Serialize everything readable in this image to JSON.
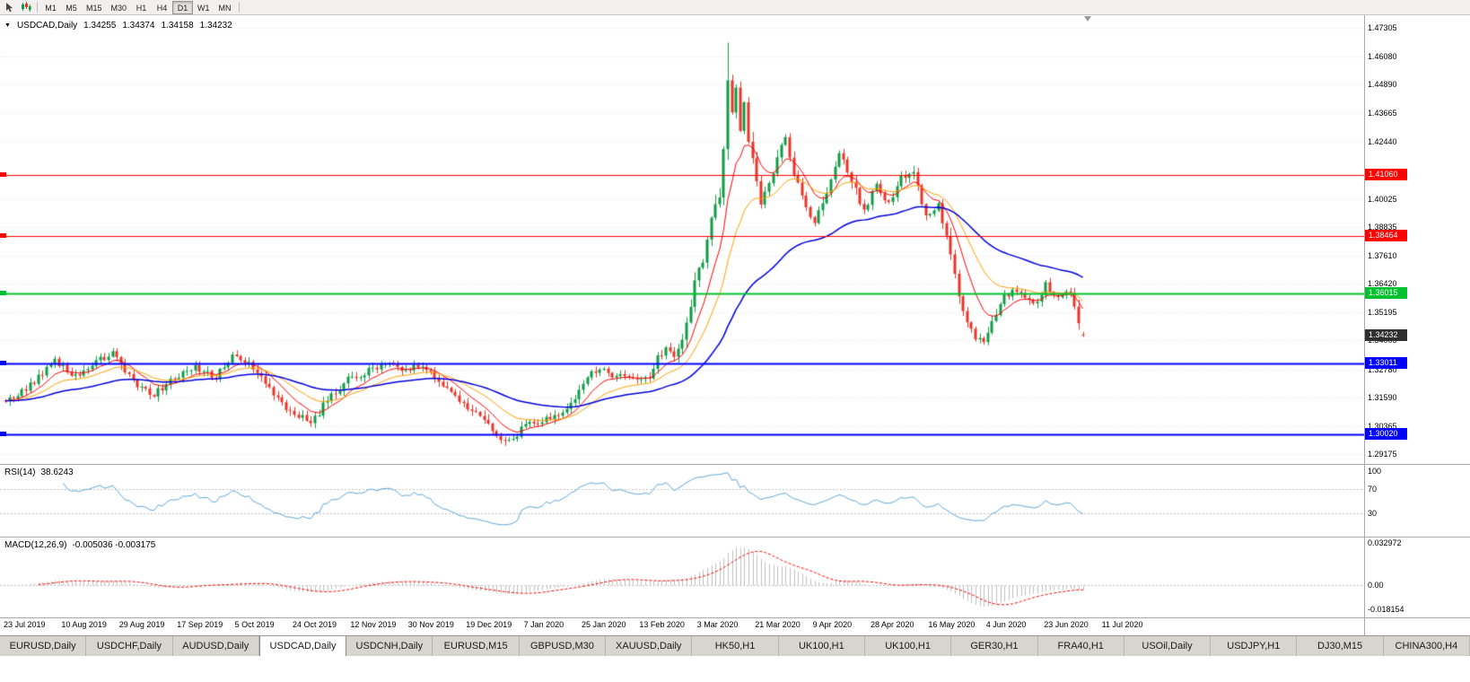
{
  "colors": {
    "background": "#FFFFFF",
    "bull": "#119C46",
    "bear": "#E8352A",
    "ma_fast": "#FF0000",
    "ma_mid": "#FFA000",
    "ma_slow": "#0000E0",
    "hline_red": "#FF0000",
    "hline_green": "#00C22E",
    "hline_blue": "#0000FF",
    "current_price_badge": "#2F2F2F",
    "rsi_line": "#5FA8D8",
    "macd_histogram": "#BFBFBF",
    "macd_signal": "#FF0000",
    "grid": "#E3E3E3",
    "level_dash": "#C0C0C0",
    "axis_text": "#000000"
  },
  "toolbar": {
    "timeframes": [
      "M1",
      "M5",
      "M15",
      "M30",
      "H1",
      "H4",
      "D1",
      "W1",
      "MN"
    ],
    "active_timeframe": "D1"
  },
  "chart": {
    "title": {
      "dropdown_icon": "▼",
      "symbol": "USDCAD,Daily",
      "open": "1.34255",
      "high": "1.34374",
      "low": "1.34158",
      "close": "1.34232"
    },
    "price_axis": {
      "ticks": [
        1.47305,
        1.4608,
        1.4489,
        1.43665,
        1.4244,
        1.40025,
        1.38835,
        1.3761,
        1.3642,
        1.35195,
        1.34005,
        1.3278,
        1.3159,
        1.30365,
        1.29175
      ]
    },
    "hlines": [
      {
        "value": 1.4106,
        "label": "1.41060",
        "color_key": "hline_red",
        "width": 1
      },
      {
        "value": 1.38464,
        "label": "1.38464",
        "color_key": "hline_red",
        "width": 1
      },
      {
        "value": 1.36015,
        "label": "1.36015",
        "color_key": "hline_green",
        "width": 2
      },
      {
        "value": 1.33011,
        "label": "1.33011",
        "color_key": "hline_blue",
        "width": 2
      },
      {
        "value": 1.3002,
        "label": "1.30020",
        "color_key": "hline_blue",
        "width": 2
      }
    ],
    "current_price": {
      "value": 1.34232,
      "label": "1.34232"
    }
  },
  "chart_data": {
    "type": "candlestick",
    "symbol": "USDCAD",
    "timeframe": "Daily",
    "candle_count": 262,
    "price_range": [
      1.28755,
      1.47839
    ],
    "extreme_high": 1.4668,
    "extreme_low": 1.2952,
    "last_candle": {
      "open": 1.34255,
      "high": 1.34374,
      "low": 1.34158,
      "close": 1.34232
    },
    "price_path": [
      [
        0,
        1.3145
      ],
      [
        4,
        1.3185
      ],
      [
        8,
        1.324
      ],
      [
        12,
        1.332
      ],
      [
        15,
        1.327
      ],
      [
        17,
        1.3245
      ],
      [
        20,
        1.329
      ],
      [
        23,
        1.332
      ],
      [
        26,
        1.3345
      ],
      [
        29,
        1.327
      ],
      [
        31,
        1.3225
      ],
      [
        34,
        1.3185
      ],
      [
        36,
        1.317
      ],
      [
        39,
        1.3215
      ],
      [
        41,
        1.3245
      ],
      [
        44,
        1.327
      ],
      [
        46,
        1.3285
      ],
      [
        49,
        1.326
      ],
      [
        51,
        1.3245
      ],
      [
        53,
        1.329
      ],
      [
        55,
        1.333
      ],
      [
        57,
        1.3325
      ],
      [
        59,
        1.331
      ],
      [
        61,
        1.327
      ],
      [
        63,
        1.323
      ],
      [
        65,
        1.318
      ],
      [
        67,
        1.313
      ],
      [
        69,
        1.31
      ],
      [
        71,
        1.308
      ],
      [
        74,
        1.305
      ],
      [
        76,
        1.3095
      ],
      [
        78,
        1.3155
      ],
      [
        81,
        1.32
      ],
      [
        83,
        1.3235
      ],
      [
        86,
        1.3255
      ],
      [
        88,
        1.3275
      ],
      [
        90,
        1.329
      ],
      [
        92,
        1.3305
      ],
      [
        94,
        1.329
      ],
      [
        96,
        1.328
      ],
      [
        98,
        1.3285
      ],
      [
        100,
        1.329
      ],
      [
        102,
        1.327
      ],
      [
        104,
        1.325
      ],
      [
        106,
        1.321
      ],
      [
        108,
        1.317
      ],
      [
        110,
        1.3145
      ],
      [
        112,
        1.312
      ],
      [
        114,
        1.309
      ],
      [
        116,
        1.3055
      ],
      [
        118,
        1.301
      ],
      [
        120,
        1.298
      ],
      [
        122,
        1.2985
      ],
      [
        124,
        1.3005
      ],
      [
        126,
        1.3035
      ],
      [
        128,
        1.3055
      ],
      [
        130,
        1.306
      ],
      [
        132,
        1.307
      ],
      [
        134,
        1.309
      ],
      [
        136,
        1.3115
      ],
      [
        138,
        1.315
      ],
      [
        140,
        1.32
      ],
      [
        142,
        1.3255
      ],
      [
        144,
        1.328
      ],
      [
        146,
        1.326
      ],
      [
        148,
        1.325
      ],
      [
        150,
        1.3242
      ],
      [
        152,
        1.3235
      ],
      [
        154,
        1.3228
      ],
      [
        156,
        1.3255
      ],
      [
        158,
        1.332
      ],
      [
        160,
        1.338
      ],
      [
        162,
        1.333
      ],
      [
        164,
        1.339
      ],
      [
        166,
        1.353
      ],
      [
        167,
        1.366
      ],
      [
        168,
        1.37
      ],
      [
        169,
        1.374
      ],
      [
        170,
        1.384
      ],
      [
        171,
        1.393
      ],
      [
        172,
        1.397
      ],
      [
        173,
        1.401
      ],
      [
        174,
        1.423
      ],
      [
        175,
        1.454
      ],
      [
        176,
        1.436
      ],
      [
        177,
        1.448
      ],
      [
        178,
        1.43
      ],
      [
        179,
        1.443
      ],
      [
        180,
        1.426
      ],
      [
        181,
        1.419
      ],
      [
        182,
        1.407
      ],
      [
        183,
        1.399
      ],
      [
        185,
        1.406
      ],
      [
        187,
        1.418
      ],
      [
        189,
        1.426
      ],
      [
        191,
        1.409
      ],
      [
        193,
        1.402
      ],
      [
        196,
        1.39
      ],
      [
        199,
        1.404
      ],
      [
        202,
        1.42
      ],
      [
        205,
        1.409
      ],
      [
        208,
        1.395
      ],
      [
        211,
        1.407
      ],
      [
        214,
        1.398
      ],
      [
        217,
        1.41
      ],
      [
        220,
        1.411
      ],
      [
        223,
        1.393
      ],
      [
        226,
        1.398
      ],
      [
        229,
        1.378
      ],
      [
        232,
        1.352
      ],
      [
        235,
        1.342
      ],
      [
        237,
        1.34
      ],
      [
        239,
        1.348
      ],
      [
        241,
        1.356
      ],
      [
        243,
        1.36
      ],
      [
        245,
        1.362
      ],
      [
        247,
        1.357
      ],
      [
        249,
        1.3555
      ],
      [
        251,
        1.359
      ],
      [
        252,
        1.364
      ],
      [
        254,
        1.358
      ],
      [
        256,
        1.359
      ],
      [
        258,
        1.362
      ],
      [
        259,
        1.355
      ],
      [
        260,
        1.346
      ],
      [
        261,
        1.34232
      ]
    ],
    "x_labels": [
      "23 Jul 2019",
      "10 Aug 2019",
      "29 Aug 2019",
      "17 Sep 2019",
      "5 Oct 2019",
      "24 Oct 2019",
      "12 Nov 2019",
      "30 Nov 2019",
      "19 Dec 2019",
      "7 Jan 2020",
      "25 Jan 2020",
      "13 Feb 2020",
      "3 Mar 2020",
      "21 Mar 2020",
      "9 Apr 2020",
      "28 Apr 2020",
      "16 May 2020",
      "4 Jun 2020",
      "23 Jun 2020",
      "11 Jul 2020"
    ],
    "moving_averages": [
      {
        "name": "fast",
        "period": 9,
        "color_key": "ma_fast",
        "width": 1
      },
      {
        "name": "mid",
        "period": 20,
        "color_key": "ma_mid",
        "width": 1
      },
      {
        "name": "slow",
        "period": 52,
        "color_key": "ma_slow",
        "width": 1.5
      }
    ],
    "indicators": {
      "rsi": {
        "period": 14,
        "current": "38.6243",
        "levels": [
          70,
          30
        ],
        "axis_ticks": [
          {
            "label": "100",
            "value": 100
          },
          {
            "label": "70",
            "value": 70
          },
          {
            "label": "30",
            "value": 30
          }
        ],
        "range": [
          -8,
          110
        ]
      },
      "macd": {
        "fast": 12,
        "slow": 26,
        "signal": 9,
        "current_macd": "-0.005036",
        "current_signal": "-0.003175",
        "axis_ticks": [
          {
            "label": "0.032972",
            "value": 0.032972
          },
          {
            "label": "0.00",
            "value": 0
          },
          {
            "label": "-0.018154",
            "value": -0.018154
          }
        ],
        "range": [
          -0.0247,
          0.0371
        ]
      }
    }
  },
  "rsi_panel": {
    "label": "RSI(14)",
    "value": "38.6243"
  },
  "macd_panel": {
    "label": "MACD(12,26,9)",
    "values": "-0.005036 -0.003175"
  },
  "tabs": {
    "active_index": 3,
    "items": [
      "EURUSD,Daily",
      "USDCHF,Daily",
      "AUDUSD,Daily",
      "USDCAD,Daily",
      "USDCNH,Daily",
      "EURUSD,M15",
      "GBPUSD,M30",
      "XAUUSD,Daily",
      "HK50,H1",
      "UK100,H1",
      "UK100,H1",
      "GER30,H1",
      "FRA40,H1",
      "USOil,Daily",
      "USDJPY,H1",
      "DJ30,M15",
      "CHINA300,H4"
    ]
  }
}
